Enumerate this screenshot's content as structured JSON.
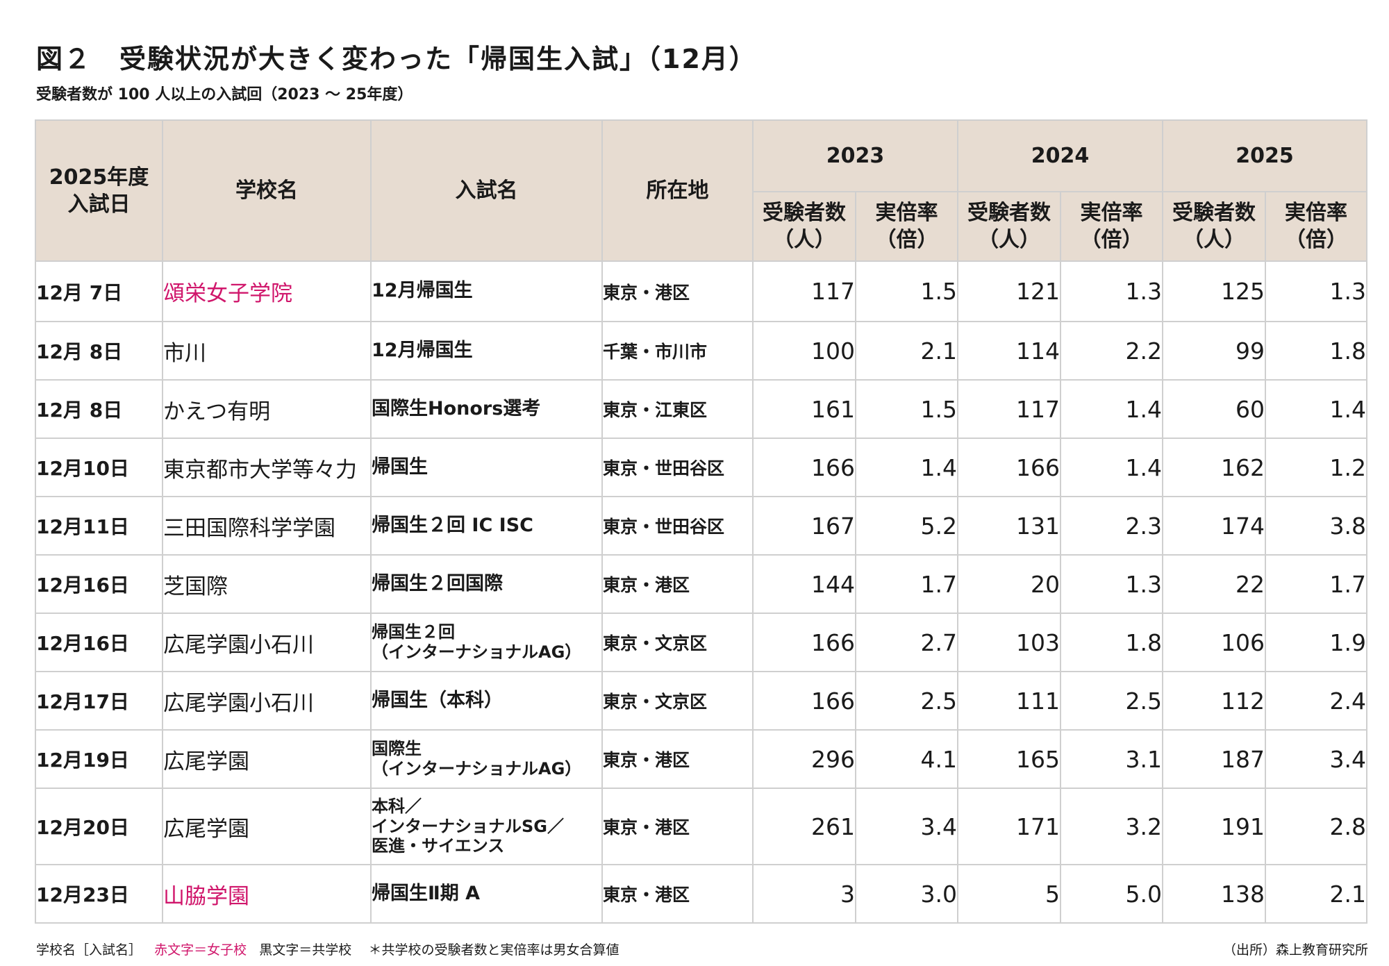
{
  "title": "図２　受験状況が大きく変わった「帰国生入試」（12月）",
  "subtitle": "受験者数が 100 人以上の入試回（2023 ～ 25年度）",
  "headers": {
    "date_line1": "2025年度",
    "date_line2": "入試日",
    "school": "学校名",
    "exam": "入試名",
    "location": "所在地",
    "years": [
      "2023",
      "2024",
      "2025"
    ],
    "applicants_line1": "受験者数",
    "applicants_line2": "（人）",
    "ratio_line1": "実倍率",
    "ratio_line2": "（倍）"
  },
  "rows": [
    {
      "date": "12月  7日",
      "school": "頌栄女子学院",
      "girls_school": true,
      "exam": [
        "12月帰国生"
      ],
      "location": "東京・港区",
      "y2023": {
        "applicants": "117",
        "ratio": "1.5"
      },
      "y2024": {
        "applicants": "121",
        "ratio": "1.3"
      },
      "y2025": {
        "applicants": "125",
        "ratio": "1.3"
      }
    },
    {
      "date": "12月  8日",
      "school": "市川",
      "girls_school": false,
      "exam": [
        "12月帰国生"
      ],
      "location": "千葉・市川市",
      "y2023": {
        "applicants": "100",
        "ratio": "2.1"
      },
      "y2024": {
        "applicants": "114",
        "ratio": "2.2"
      },
      "y2025": {
        "applicants": "99",
        "ratio": "1.8"
      }
    },
    {
      "date": "12月  8日",
      "school": "かえつ有明",
      "girls_school": false,
      "exam": [
        "国際生Honors選考"
      ],
      "location": "東京・江東区",
      "y2023": {
        "applicants": "161",
        "ratio": "1.5"
      },
      "y2024": {
        "applicants": "117",
        "ratio": "1.4"
      },
      "y2025": {
        "applicants": "60",
        "ratio": "1.4"
      }
    },
    {
      "date": "12月10日",
      "school": "東京都市大学等々力",
      "girls_school": false,
      "exam": [
        "帰国生"
      ],
      "location": "東京・世田谷区",
      "y2023": {
        "applicants": "166",
        "ratio": "1.4"
      },
      "y2024": {
        "applicants": "166",
        "ratio": "1.4"
      },
      "y2025": {
        "applicants": "162",
        "ratio": "1.2"
      }
    },
    {
      "date": "12月11日",
      "school": "三田国際科学学園",
      "girls_school": false,
      "exam": [
        "帰国生２回 IC ISC"
      ],
      "location": "東京・世田谷区",
      "y2023": {
        "applicants": "167",
        "ratio": "5.2"
      },
      "y2024": {
        "applicants": "131",
        "ratio": "2.3"
      },
      "y2025": {
        "applicants": "174",
        "ratio": "3.8"
      }
    },
    {
      "date": "12月16日",
      "school": "芝国際",
      "girls_school": false,
      "exam": [
        "帰国生２回国際"
      ],
      "location": "東京・港区",
      "y2023": {
        "applicants": "144",
        "ratio": "1.7"
      },
      "y2024": {
        "applicants": "20",
        "ratio": "1.3"
      },
      "y2025": {
        "applicants": "22",
        "ratio": "1.7"
      }
    },
    {
      "date": "12月16日",
      "school": "広尾学園小石川",
      "girls_school": false,
      "exam": [
        "帰国生２回",
        "（インターナショナルAG）"
      ],
      "location": "東京・文京区",
      "y2023": {
        "applicants": "166",
        "ratio": "2.7"
      },
      "y2024": {
        "applicants": "103",
        "ratio": "1.8"
      },
      "y2025": {
        "applicants": "106",
        "ratio": "1.9"
      }
    },
    {
      "date": "12月17日",
      "school": "広尾学園小石川",
      "girls_school": false,
      "exam": [
        "帰国生（本科）"
      ],
      "location": "東京・文京区",
      "y2023": {
        "applicants": "166",
        "ratio": "2.5"
      },
      "y2024": {
        "applicants": "111",
        "ratio": "2.5"
      },
      "y2025": {
        "applicants": "112",
        "ratio": "2.4"
      }
    },
    {
      "date": "12月19日",
      "school": "広尾学園",
      "girls_school": false,
      "exam": [
        "国際生",
        "（インターナショナルAG）"
      ],
      "location": "東京・港区",
      "y2023": {
        "applicants": "296",
        "ratio": "4.1"
      },
      "y2024": {
        "applicants": "165",
        "ratio": "3.1"
      },
      "y2025": {
        "applicants": "187",
        "ratio": "3.4"
      }
    },
    {
      "date": "12月20日",
      "school": "広尾学園",
      "girls_school": false,
      "exam": [
        "本科／",
        "インターナショナルSG／",
        "医進・サイエンス"
      ],
      "location": "東京・港区",
      "y2023": {
        "applicants": "261",
        "ratio": "3.4"
      },
      "y2024": {
        "applicants": "171",
        "ratio": "3.2"
      },
      "y2025": {
        "applicants": "191",
        "ratio": "2.8"
      }
    },
    {
      "date": "12月23日",
      "school": "山脇学園",
      "girls_school": true,
      "exam": [
        "帰国生Ⅱ期 A"
      ],
      "location": "東京・港区",
      "y2023": {
        "applicants": "3",
        "ratio": "3.0"
      },
      "y2024": {
        "applicants": "5",
        "ratio": "5.0"
      },
      "y2025": {
        "applicants": "138",
        "ratio": "2.1"
      }
    }
  ],
  "footer": {
    "legend_prefix": "学校名［入試名］",
    "legend_red": "赤文字＝女子校",
    "legend_black": "黒文字＝共学校",
    "note": "＊共学校の受験者数と実倍率は男女合算値",
    "source": "（出所）森上教育研究所"
  },
  "colors": {
    "header_bg": "#e7dcd1",
    "year_2023_bg": "#e6effd",
    "year_2024_bg": "#dde8de",
    "year_2025_bg": "#fcf7e4",
    "girls_school_text": "#d0166b",
    "grid": "#cfcfcf"
  }
}
